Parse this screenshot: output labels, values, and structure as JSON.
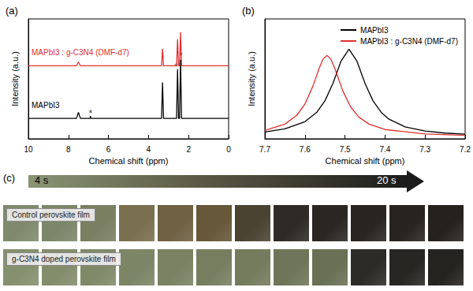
{
  "chart_data": [
    {
      "type": "line",
      "title": "(a)",
      "x_label": "Chemical shift (ppm)",
      "y_label": "Intensity (a.u.)",
      "xlim": [
        10,
        0
      ],
      "xticks": [
        10,
        8,
        6,
        4,
        2,
        0
      ],
      "ylim": [
        0,
        1
      ],
      "yticks": [],
      "tick_labels": "x",
      "grid": false,
      "series": [
        {
          "name": "MAPbI3 : g-C3N4 (DMF-d7)",
          "color": "#e0302f",
          "x": [
            10,
            7.6,
            7.5,
            7.4,
            3.35,
            3.3,
            3.25,
            2.6,
            2.55,
            2.5,
            2.45,
            2.4,
            2.35,
            0
          ],
          "values": [
            0.61,
            0.61,
            0.64,
            0.61,
            0.61,
            0.75,
            0.61,
            0.61,
            0.83,
            0.61,
            0.61,
            0.89,
            0.61,
            0.61
          ]
        },
        {
          "name": "MAPbI3",
          "color": "#000000",
          "x": [
            10,
            7.6,
            7.5,
            7.4,
            7.0,
            6.92,
            6.9,
            6.88,
            3.35,
            3.3,
            3.25,
            2.6,
            2.55,
            2.5,
            2.45,
            2.4,
            2.35,
            0
          ],
          "values": [
            0.17,
            0.17,
            0.22,
            0.17,
            0.17,
            0.17,
            0.19,
            0.17,
            0.17,
            0.47,
            0.17,
            0.17,
            0.58,
            0.17,
            0.17,
            0.66,
            0.17,
            0.17
          ]
        }
      ],
      "annotations": [
        {
          "text": "*",
          "x": 6.9,
          "y": 0.21
        },
        {
          "text": "*",
          "x": 2.62,
          "y": 0.6
        },
        {
          "text": "*",
          "x": 2.38,
          "y": 0.69
        }
      ]
    },
    {
      "type": "line",
      "title": "(b)",
      "x_label": "Chemical shift (ppm)",
      "y_label": "Intensity (a.u.)",
      "xlim": [
        7.7,
        7.2
      ],
      "xticks": [
        7.7,
        7.6,
        7.5,
        7.4,
        7.3,
        7.2
      ],
      "ylim": [
        0,
        1.15
      ],
      "yticks": [],
      "tick_labels": "x",
      "grid": false,
      "legend": "upper right",
      "series": [
        {
          "name": "MAPbI3",
          "color": "#000000",
          "x": [
            7.7,
            7.65,
            7.6,
            7.57,
            7.55,
            7.53,
            7.51,
            7.49,
            7.47,
            7.45,
            7.43,
            7.41,
            7.39,
            7.35,
            7.3,
            7.25,
            7.2
          ],
          "values": [
            0.065,
            0.095,
            0.164,
            0.256,
            0.364,
            0.532,
            0.744,
            0.86,
            0.744,
            0.532,
            0.364,
            0.256,
            0.188,
            0.115,
            0.075,
            0.055,
            0.044
          ]
        },
        {
          "name": "MAPbI3 : g-C3N4 (DMF-d7)",
          "color": "#e0302f",
          "x": [
            7.7,
            7.65,
            7.62,
            7.6,
            7.58,
            7.565,
            7.555,
            7.545,
            7.535,
            7.525,
            7.505,
            7.485,
            7.465,
            7.44,
            7.4,
            7.3,
            7.2
          ],
          "values": [
            0.081,
            0.141,
            0.227,
            0.333,
            0.506,
            0.671,
            0.763,
            0.8,
            0.763,
            0.671,
            0.455,
            0.301,
            0.207,
            0.141,
            0.089,
            0.046,
            0.033
          ]
        }
      ]
    }
  ],
  "panel_c": {
    "label": "(c)",
    "time_start": "4 s",
    "time_end": "20 s",
    "rows": [
      "Control perovskite film",
      "g-C3N4 doped perovskite film"
    ]
  }
}
